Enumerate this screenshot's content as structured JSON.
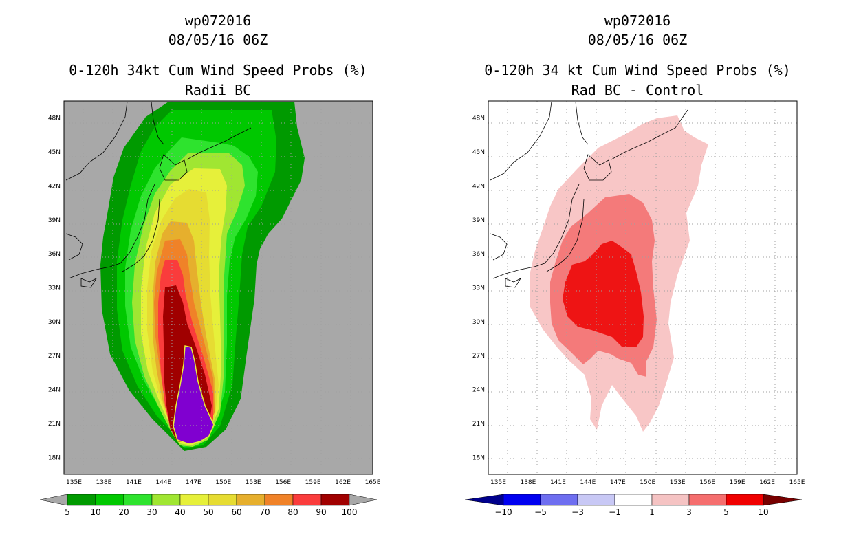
{
  "chart_data": [
    {
      "type": "heatmap",
      "title_lines": [
        "wp072016",
        "08/05/16 06Z",
        "0-120h 34kt Cum Wind Speed Probs (%)",
        "Radii BC"
      ],
      "xlabel": "",
      "ylabel": "",
      "x_ticks": [
        "135E",
        "138E",
        "141E",
        "144E",
        "147E",
        "150E",
        "153E",
        "156E",
        "159E",
        "162E",
        "165E"
      ],
      "y_ticks": [
        "18N",
        "21N",
        "24N",
        "27N",
        "30N",
        "33N",
        "36N",
        "39N",
        "42N",
        "45N",
        "48N"
      ],
      "xlim": [
        134,
        165
      ],
      "ylim": [
        16.5,
        49.5
      ],
      "background_color": "#a8a8a8",
      "colorbar": {
        "labels": [
          "5",
          "10",
          "20",
          "30",
          "40",
          "50",
          "60",
          "70",
          "80",
          "90",
          "100"
        ],
        "colors": [
          "#009a00",
          "#00c800",
          "#2ee32e",
          "#a0e632",
          "#e6f03a",
          "#e6dc32",
          "#e6af2d",
          "#f08228",
          "#fa3c3c",
          "#a00000",
          "#8000d0"
        ],
        "end_color": "#a8a8a8"
      },
      "contours": [
        {
          "level": "5",
          "color": "#009a00"
        },
        {
          "level": "10",
          "color": "#00c800"
        },
        {
          "level": "20",
          "color": "#2ee32e"
        },
        {
          "level": "30",
          "color": "#a0e632"
        },
        {
          "level": "40",
          "color": "#e6f03a"
        },
        {
          "level": "50",
          "color": "#e6dc32"
        },
        {
          "level": "60",
          "color": "#e6af2d"
        },
        {
          "level": "70",
          "color": "#f08228"
        },
        {
          "level": "80",
          "color": "#fa3c3c"
        },
        {
          "level": "90",
          "color": "#a00000"
        },
        {
          "level": "100",
          "color": "#8000d0"
        }
      ]
    },
    {
      "type": "heatmap",
      "title_lines": [
        "wp072016",
        "08/05/16 06Z",
        "0-120h 34 kt Cum Wind Speed Probs (%)",
        "Rad BC - Control"
      ],
      "xlabel": "",
      "ylabel": "",
      "x_ticks": [
        "135E",
        "138E",
        "141E",
        "144E",
        "147E",
        "150E",
        "153E",
        "156E",
        "159E",
        "162E",
        "165E"
      ],
      "y_ticks": [
        "18N",
        "21N",
        "24N",
        "27N",
        "30N",
        "33N",
        "36N",
        "39N",
        "42N",
        "45N",
        "48N"
      ],
      "xlim": [
        134,
        165
      ],
      "ylim": [
        16.5,
        49.5
      ],
      "background_color": "#ffffff",
      "colorbar": {
        "labels": [
          "-10",
          "-5",
          "-3",
          "-1",
          "1",
          "3",
          "5",
          "10"
        ],
        "colors": [
          "#0000c8",
          "#0000f0",
          "#6e6ef0",
          "#c8c8f5",
          "#ffffff",
          "#f5c3c3",
          "#f56e6e",
          "#f00000"
        ],
        "low_end_color": "#00008c",
        "end_color": "#780000"
      },
      "contours": [
        {
          "level": "1",
          "color": "#f8c6c6"
        },
        {
          "level": "3",
          "color": "#f47a7a"
        },
        {
          "level": "5",
          "color": "#ee1414"
        }
      ]
    }
  ]
}
